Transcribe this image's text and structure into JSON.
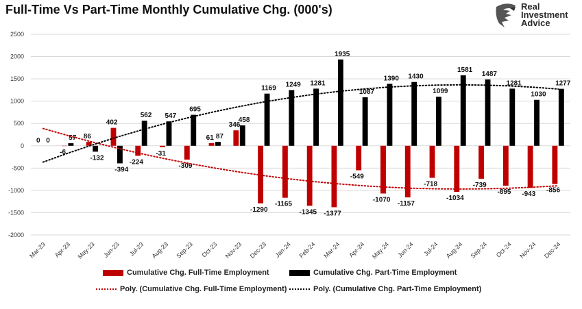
{
  "header": {
    "title": "Full-Time Vs Part-Time Monthly Cumulative Chg. (000's)",
    "logo_lines": [
      "Real",
      "Investment",
      "Advice"
    ]
  },
  "colors": {
    "full_time": "#c00000",
    "part_time": "#000000",
    "grid": "#d9d9d9",
    "axis_text": "#333333"
  },
  "legend": {
    "full_time": "Cumulative Chg. Full-Time Employment",
    "part_time": "Cumulative Chg. Part-Time Employment",
    "full_time_trend": "Poly. (Cumulative Chg. Full-Time Employment)",
    "part_time_trend": "Poly. (Cumulative Chg. Part-Time Employment)"
  },
  "chart_data": {
    "type": "bar",
    "title": "Full-Time Vs Part-Time Monthly Cumulative Chg. (000's)",
    "xlabel": "",
    "ylabel": "",
    "ylim": [
      -2000,
      2500
    ],
    "yticks": [
      -2000,
      -1500,
      -1000,
      -500,
      0,
      500,
      1000,
      1500,
      2000,
      2500
    ],
    "grid": true,
    "legend_position": "bottom",
    "categories": [
      "Mar-23",
      "Apr-23",
      "May-23",
      "Jun-23",
      "Jul-23",
      "Aug-23",
      "Sep-23",
      "Oct-23",
      "Nov-23",
      "Dec-23",
      "Jan-24",
      "Feb-24",
      "Mar-24",
      "Apr-24",
      "May-24",
      "Jun-24",
      "Jul-24",
      "Aug-24",
      "Sep-24",
      "Oct-24",
      "Nov-24",
      "Dec-24"
    ],
    "series": [
      {
        "name": "Cumulative Chg. Full-Time Employment",
        "values": [
          0,
          -6,
          86,
          402,
          -224,
          -31,
          -309,
          61,
          346,
          -1290,
          -1165,
          -1345,
          -1377,
          -549,
          -1070,
          -1157,
          -718,
          -1034,
          -739,
          -895,
          -943,
          -856
        ]
      },
      {
        "name": "Cumulative Chg. Part-Time Employment",
        "values": [
          0,
          57,
          -132,
          -394,
          562,
          547,
          695,
          87,
          458,
          1169,
          1249,
          1281,
          1935,
          1087,
          1390,
          1430,
          1099,
          1581,
          1487,
          1281,
          1030,
          1277
        ]
      }
    ],
    "trendlines": [
      {
        "name": "Poly. (Cumulative Chg. Full-Time Employment)",
        "type": "polynomial"
      },
      {
        "name": "Poly. (Cumulative Chg. Part-Time Employment)",
        "type": "polynomial"
      }
    ]
  }
}
